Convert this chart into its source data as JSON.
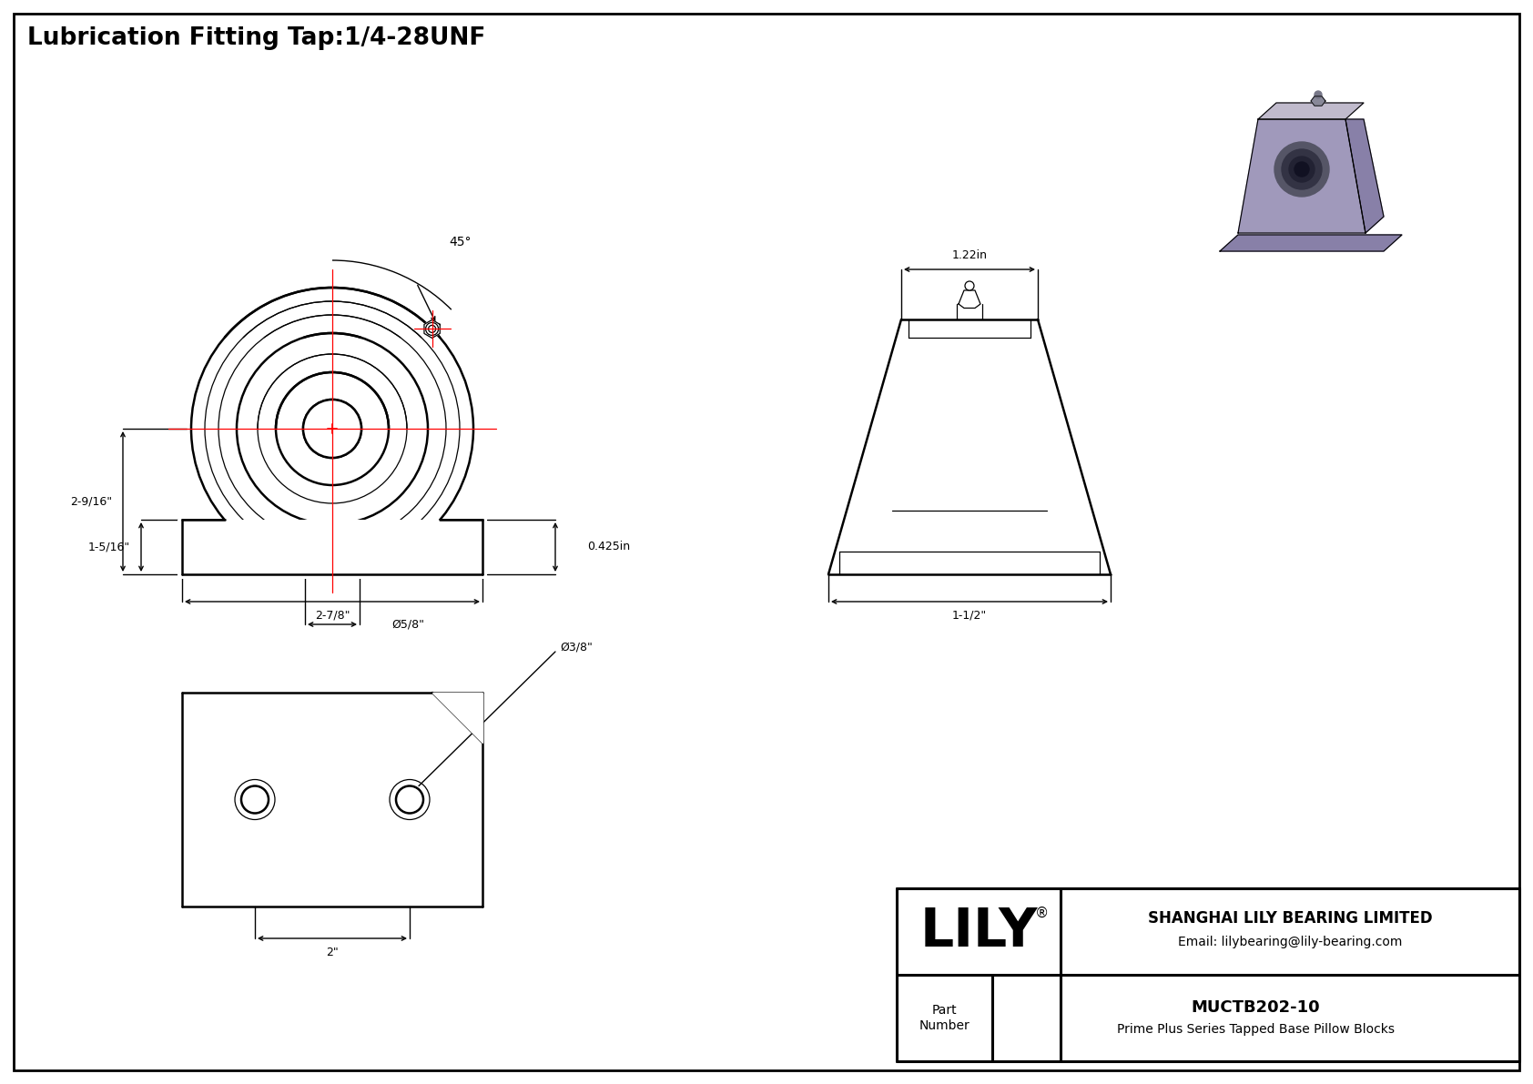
{
  "title": "Lubrication Fitting Tap:1/4-28UNF",
  "bg_color": "#ffffff",
  "line_color": "#000000",
  "red_color": "#ff0000",
  "company_name": "SHANGHAI LILY BEARING LIMITED",
  "company_email": "Email: lilybearing@lily-bearing.com",
  "part_label": "Part\nNumber",
  "part_number": "MUCTB202-10",
  "part_desc": "Prime Plus Series Tapped Base Pillow Blocks",
  "lily_text": "LILY",
  "dim_2_9_16": "2-9/16\"",
  "dim_1_5_16": "1-5/16\"",
  "dim_2_7_8": "2-7/8\"",
  "dim_5_8": "Ø5/8\"",
  "dim_45": "45°",
  "dim_0425": "0.425in",
  "dim_122": "1.22in",
  "dim_1_5_2": "1-1/2\"",
  "dim_3_8": "Ø3/8\"",
  "dim_2": "2\""
}
